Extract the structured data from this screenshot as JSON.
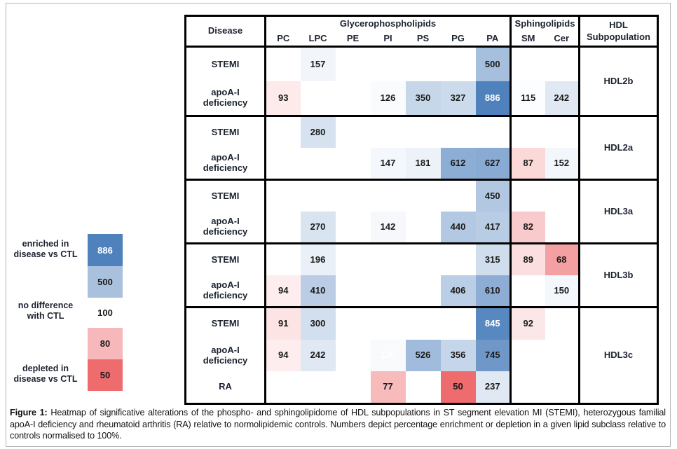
{
  "figure": {
    "caption_label": "Figure 1:",
    "caption_text": " Heatmap of significative alterations of the phospho- and sphingolipidome of HDL subpopulations in ST segment elevation MI (STEMI), heterozygous familial apoA-I deficiency and rheumatoid arthritis (RA) relative to normolipidemic controls. Numbers depict percentage enrichment or depletion in a given lipid subclass relative to controls normalised to 100%."
  },
  "legend": {
    "labels": [
      {
        "line1": "enriched in",
        "line2": "disease vs CTL"
      },
      {
        "line1": "no difference",
        "line2": "with CTL"
      },
      {
        "line1": "depleted in",
        "line2": "disease vs CTL"
      }
    ],
    "swatches": [
      {
        "value": "886",
        "color": "#4f81bd",
        "text_color": "#ffffff"
      },
      {
        "value": "500",
        "color": "#a9c1dd",
        "text_color": "#1a1a1a"
      },
      {
        "value": "100",
        "color": "#ffffff",
        "text_color": "#1a1a1a"
      },
      {
        "value": "80",
        "color": "#f6b8ba",
        "text_color": "#1a1a1a"
      },
      {
        "value": "50",
        "color": "#ee6b6e",
        "text_color": "#1a1a1a"
      }
    ]
  },
  "table": {
    "header": {
      "disease": "Disease",
      "glycero_group": "Glycerophospholipids",
      "sphingo_group": "Sphingolipids",
      "hdl_line1": "HDL",
      "hdl_line2": "Subpopulation"
    },
    "columns": [
      "PC",
      "LPC",
      "PE",
      "PI",
      "PS",
      "PG",
      "PA",
      "SM",
      "Cer"
    ]
  },
  "chart_data": {
    "type": "heatmap",
    "title": "Heatmap of significative alterations of the phospho- and sphingolipidome of HDL subpopulations",
    "columns": [
      "PC",
      "LPC",
      "PE",
      "PI",
      "PS",
      "PG",
      "PA",
      "SM",
      "Cer"
    ],
    "column_groups": [
      {
        "label": "Glycerophospholipids",
        "span": 7
      },
      {
        "label": "Sphingolipids",
        "span": 2
      }
    ],
    "scale": {
      "min": {
        "value": 50,
        "color": "#ee6b6e"
      },
      "mid": {
        "value": 100,
        "color": "#ffffff"
      },
      "max": {
        "value": 886,
        "color": "#4f81bd"
      },
      "meaning": {
        "high": "enriched in disease vs CTL",
        "mid": "no difference with CTL",
        "low": "depleted in disease vs CTL"
      }
    },
    "groups": [
      {
        "subpopulation": "HDL2b",
        "rows": [
          {
            "disease_lines": [
              "STEMI"
            ],
            "cells": [
              {
                "col": "LPC",
                "v": 157
              },
              {
                "col": "PA",
                "v": 500
              }
            ]
          },
          {
            "disease_lines": [
              "apoA-I",
              "deficiency"
            ],
            "cells": [
              {
                "col": "PC",
                "v": 93
              },
              {
                "col": "PI",
                "v": 126
              },
              {
                "col": "PS",
                "v": 350
              },
              {
                "col": "PG",
                "v": 327
              },
              {
                "col": "PA",
                "v": 886,
                "wt": true
              },
              {
                "col": "SM",
                "v": 115
              },
              {
                "col": "Cer",
                "v": 242
              }
            ]
          }
        ]
      },
      {
        "subpopulation": "HDL2a",
        "rows": [
          {
            "disease_lines": [
              "STEMI"
            ],
            "cells": [
              {
                "col": "LPC",
                "v": 280
              }
            ]
          },
          {
            "disease_lines": [
              "apoA-I",
              "deficiency"
            ],
            "cells": [
              {
                "col": "PI",
                "v": 147
              },
              {
                "col": "PS",
                "v": 181
              },
              {
                "col": "PG",
                "v": 612
              },
              {
                "col": "PA",
                "v": 627
              },
              {
                "col": "SM",
                "v": 87
              },
              {
                "col": "Cer",
                "v": 152
              }
            ]
          }
        ]
      },
      {
        "subpopulation": "HDL3a",
        "rows": [
          {
            "disease_lines": [
              "STEMI"
            ],
            "cells": [
              {
                "col": "PA",
                "v": 450
              }
            ]
          },
          {
            "disease_lines": [
              "apoA-I",
              "deficiency"
            ],
            "cells": [
              {
                "col": "LPC",
                "v": 270
              },
              {
                "col": "PI",
                "v": 142
              },
              {
                "col": "PG",
                "v": 440
              },
              {
                "col": "PA",
                "v": 417
              },
              {
                "col": "SM",
                "v": 82
              }
            ]
          }
        ]
      },
      {
        "subpopulation": "HDL3b",
        "rows": [
          {
            "disease_lines": [
              "STEMI"
            ],
            "cells": [
              {
                "col": "LPC",
                "v": 196
              },
              {
                "col": "PA",
                "v": 315
              },
              {
                "col": "SM",
                "v": 89
              },
              {
                "col": "Cer",
                "v": 68
              }
            ]
          },
          {
            "disease_lines": [
              "apoA-I",
              "deficiency"
            ],
            "cells": [
              {
                "col": "PC",
                "v": 94
              },
              {
                "col": "LPC",
                "v": 410
              },
              {
                "col": "PG",
                "v": 406
              },
              {
                "col": "PA",
                "v": 610
              },
              {
                "col": "Cer",
                "v": 150
              }
            ]
          }
        ]
      },
      {
        "subpopulation": "HDL3c",
        "rows": [
          {
            "disease_lines": [
              "STEMI"
            ],
            "cells": [
              {
                "col": "PC",
                "v": 91
              },
              {
                "col": "LPC",
                "v": 300
              },
              {
                "col": "PA",
                "v": 845,
                "wt": true
              },
              {
                "col": "SM",
                "v": 92
              }
            ]
          },
          {
            "disease_lines": [
              "apoA-I",
              "deficiency"
            ],
            "cells": [
              {
                "col": "PC",
                "v": 94
              },
              {
                "col": "LPC",
                "v": 242
              },
              {
                "col": "PI",
                "v": 130,
                "wt": true
              },
              {
                "col": "PS",
                "v": 526
              },
              {
                "col": "PG",
                "v": 356
              },
              {
                "col": "PA",
                "v": 745
              }
            ]
          },
          {
            "disease_lines": [
              "RA"
            ],
            "cells": [
              {
                "col": "PI",
                "v": 77
              },
              {
                "col": "PG",
                "v": 50
              },
              {
                "col": "PA",
                "v": 237
              }
            ]
          }
        ]
      }
    ]
  }
}
